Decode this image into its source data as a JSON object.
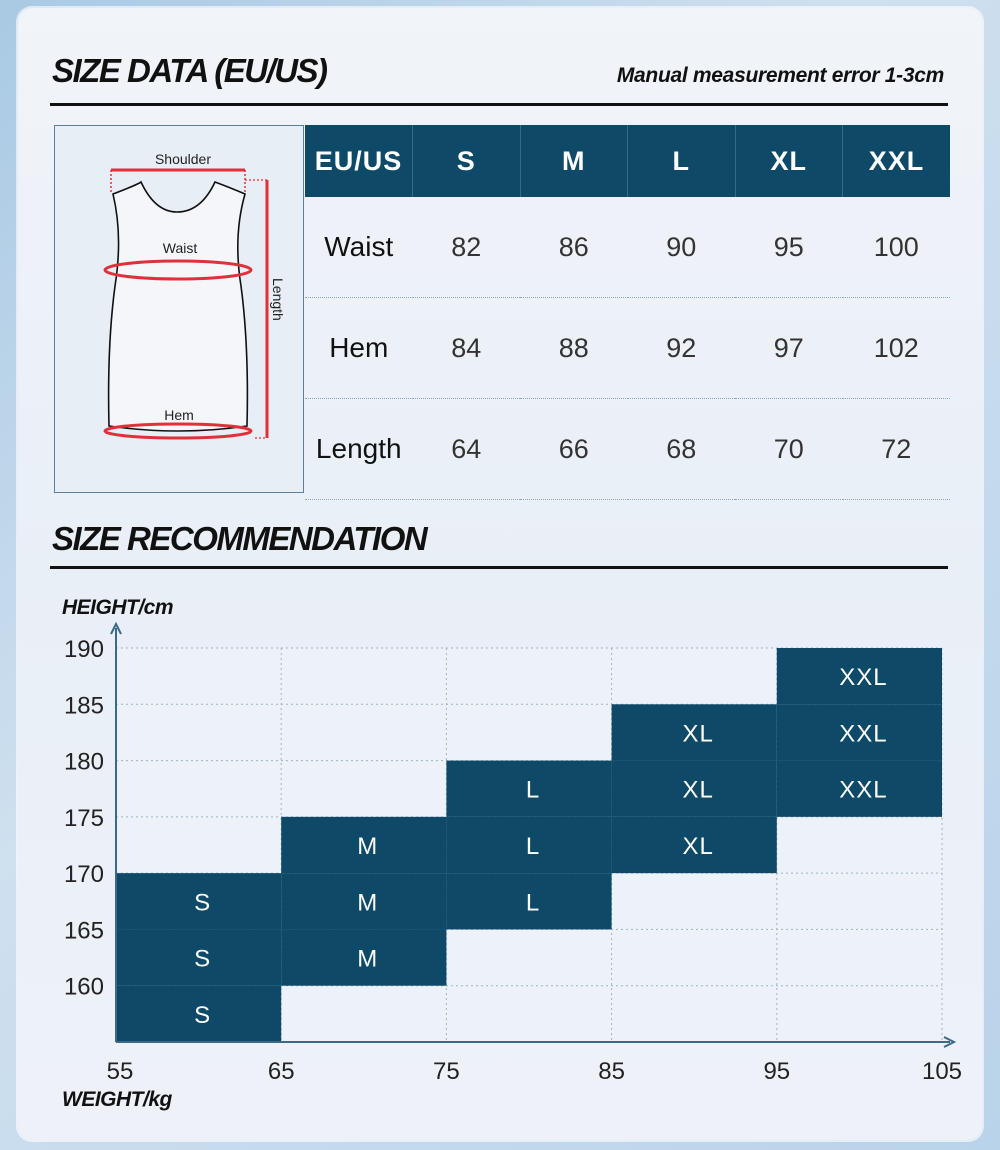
{
  "size_data": {
    "title": "SIZE DATA (EU/US)",
    "note": "Manual measurement error 1-3cm",
    "figure_labels": {
      "shoulder": "Shoulder",
      "waist": "Waist",
      "length": "Length",
      "hem": "Hem"
    },
    "table": {
      "headers": [
        "EU/US",
        "S",
        "M",
        "L",
        "XL",
        "XXL"
      ],
      "rows": [
        {
          "label": "Waist",
          "values": [
            "82",
            "86",
            "90",
            "95",
            "100"
          ]
        },
        {
          "label": "Hem",
          "values": [
            "84",
            "88",
            "92",
            "97",
            "102"
          ]
        },
        {
          "label": "Length",
          "values": [
            "64",
            "66",
            "68",
            "70",
            "72"
          ]
        }
      ]
    }
  },
  "recommendation": {
    "title": "SIZE RECOMMENDATION",
    "ylabel": "HEIGHT/cm",
    "xlabel": "WEIGHT/kg"
  },
  "colors": {
    "accent": "#0e4a67",
    "text": "#111111"
  },
  "chart_data": {
    "type": "heatmap",
    "xlabel": "WEIGHT/kg",
    "ylabel": "HEIGHT/cm",
    "x_ticks": [
      55,
      65,
      75,
      85,
      95,
      105
    ],
    "y_ticks": [
      160,
      165,
      170,
      175,
      180,
      185,
      190
    ],
    "xlim": [
      55,
      105
    ],
    "ylim": [
      155,
      190
    ],
    "cells": [
      {
        "x": [
          55,
          65
        ],
        "y": [
          155,
          160
        ],
        "size": "S"
      },
      {
        "x": [
          55,
          65
        ],
        "y": [
          160,
          165
        ],
        "size": "S"
      },
      {
        "x": [
          55,
          65
        ],
        "y": [
          165,
          170
        ],
        "size": "S"
      },
      {
        "x": [
          65,
          75
        ],
        "y": [
          160,
          165
        ],
        "size": "M"
      },
      {
        "x": [
          65,
          75
        ],
        "y": [
          165,
          170
        ],
        "size": "M"
      },
      {
        "x": [
          65,
          75
        ],
        "y": [
          170,
          175
        ],
        "size": "M"
      },
      {
        "x": [
          75,
          85
        ],
        "y": [
          165,
          170
        ],
        "size": "L"
      },
      {
        "x": [
          75,
          85
        ],
        "y": [
          170,
          175
        ],
        "size": "L"
      },
      {
        "x": [
          75,
          85
        ],
        "y": [
          175,
          180
        ],
        "size": "L"
      },
      {
        "x": [
          85,
          95
        ],
        "y": [
          170,
          175
        ],
        "size": "XL"
      },
      {
        "x": [
          85,
          95
        ],
        "y": [
          175,
          180
        ],
        "size": "XL"
      },
      {
        "x": [
          85,
          95
        ],
        "y": [
          180,
          185
        ],
        "size": "XL"
      },
      {
        "x": [
          95,
          105
        ],
        "y": [
          175,
          180
        ],
        "size": "XXL"
      },
      {
        "x": [
          95,
          105
        ],
        "y": [
          180,
          185
        ],
        "size": "XXL"
      },
      {
        "x": [
          95,
          105
        ],
        "y": [
          185,
          190
        ],
        "size": "XXL"
      }
    ],
    "grid": true
  }
}
